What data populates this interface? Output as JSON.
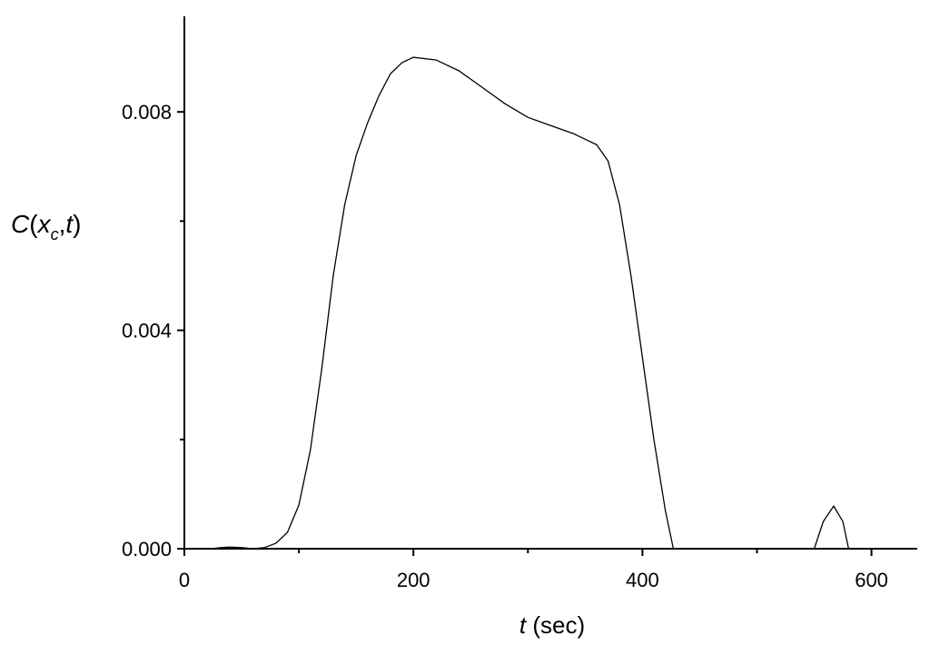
{
  "chart_data": {
    "type": "line",
    "x_label": [
      "t",
      " (sec)"
    ],
    "y_label": [
      "C",
      "(",
      "x",
      "c",
      ",",
      "t",
      ")"
    ],
    "x": [
      23,
      32,
      40,
      50,
      60,
      70,
      80,
      90,
      100,
      110,
      120,
      130,
      140,
      150,
      160,
      170,
      180,
      190,
      200,
      220,
      240,
      260,
      280,
      300,
      320,
      340,
      360,
      370,
      380,
      390,
      400,
      410,
      420,
      427,
      490,
      550,
      558,
      567,
      575,
      580
    ],
    "series": [
      {
        "color": "#000000",
        "values": [
          0,
          2e-05,
          3e-05,
          2e-05,
          0,
          2e-05,
          0.0001,
          0.0003,
          0.0008,
          0.0018,
          0.0033,
          0.005,
          0.0063,
          0.0072,
          0.0078,
          0.0083,
          0.0087,
          0.0089,
          0.009,
          0.00895,
          0.00875,
          0.00845,
          0.00815,
          0.0079,
          0.00775,
          0.0076,
          0.0074,
          0.0071,
          0.0063,
          0.005,
          0.0035,
          0.002,
          0.0007,
          0,
          null,
          0,
          0.0005,
          0.00078,
          0.0005,
          0
        ]
      }
    ],
    "xlim": [
      0,
      640
    ],
    "ylim": [
      0,
      0.00975
    ],
    "xticks": [
      0,
      200,
      400,
      600
    ],
    "xminorticks": [
      100,
      300,
      500
    ],
    "yticks": [
      {
        "value": 0,
        "label": "0.000"
      },
      {
        "value": 0.004,
        "label": "0.004"
      },
      {
        "value": 0.008,
        "label": "0.008"
      }
    ],
    "yminorticks": [
      0.002,
      0.006
    ]
  }
}
